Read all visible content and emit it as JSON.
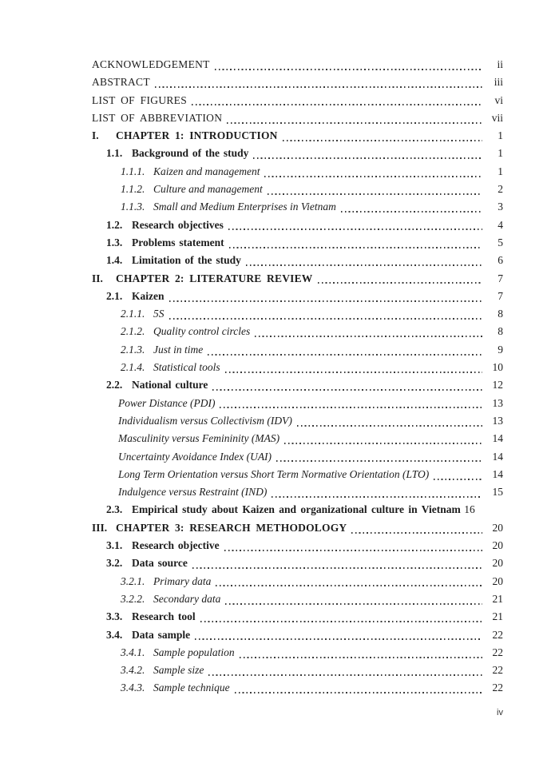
{
  "page": {
    "footer_page_number": "iv",
    "background_color": "#ffffff",
    "text_color": "#1c1c1c",
    "leader_dot_color": "#3b3b3b"
  },
  "toc": {
    "entries": [
      {
        "level": "front",
        "number": "",
        "title": "ACKNOWLEDGEMENT",
        "page": "ii"
      },
      {
        "level": "front",
        "number": "",
        "title": "ABSTRACT",
        "page": "iii"
      },
      {
        "level": "front",
        "number": "",
        "title": "LIST OF FIGURES",
        "page": "vi"
      },
      {
        "level": "front",
        "number": "",
        "title": "LIST OF ABBREVIATION",
        "page": "vii"
      },
      {
        "level": "chapter",
        "number": "I.",
        "title": "CHAPTER 1: INTRODUCTION",
        "page": "1"
      },
      {
        "level": "section",
        "number": "1.1.",
        "title": "Background of the study",
        "page": "1"
      },
      {
        "level": "subsection",
        "number": "1.1.1.",
        "title": "Kaizen and management",
        "page": "1"
      },
      {
        "level": "subsection",
        "number": "1.1.2.",
        "title": "Culture and management",
        "page": "2"
      },
      {
        "level": "subsection",
        "number": "1.1.3.",
        "title": "Small and Medium Enterprises in Vietnam",
        "page": "3"
      },
      {
        "level": "section",
        "number": "1.2.",
        "title": "Research objectives",
        "page": "4"
      },
      {
        "level": "section",
        "number": "1.3.",
        "title": "Problems statement",
        "page": "5"
      },
      {
        "level": "section",
        "number": "1.4.",
        "title": "Limitation of the study",
        "page": "6"
      },
      {
        "level": "chapter",
        "number": "II.",
        "title": "CHAPTER 2: LITERATURE REVIEW",
        "page": "7"
      },
      {
        "level": "section",
        "number": "2.1.",
        "title": "Kaizen",
        "page": "7"
      },
      {
        "level": "subsection",
        "number": "2.1.1.",
        "title": "5S",
        "page": "8"
      },
      {
        "level": "subsection",
        "number": "2.1.2.",
        "title": "Quality control circles",
        "page": "8"
      },
      {
        "level": "subsection",
        "number": "2.1.3.",
        "title": "Just in time",
        "page": "9"
      },
      {
        "level": "subsection",
        "number": "2.1.4.",
        "title": "Statistical tools",
        "page": "10"
      },
      {
        "level": "section",
        "number": "2.2.",
        "title": "National culture",
        "page": "12"
      },
      {
        "level": "plain",
        "number": "",
        "title": "Power Distance (PDI)",
        "page": "13"
      },
      {
        "level": "plain",
        "number": "",
        "title": "Individualism versus Collectivism (IDV)",
        "page": "13"
      },
      {
        "level": "plain",
        "number": "",
        "title": "Masculinity versus Femininity (MAS)",
        "page": "14"
      },
      {
        "level": "plain",
        "number": "",
        "title": "Uncertainty Avoidance Index (UAI)",
        "page": "14"
      },
      {
        "level": "plain",
        "number": "",
        "title": "Long Term Orientation versus Short Term Normative Orientation (LTO)",
        "page": "14"
      },
      {
        "level": "plain",
        "number": "",
        "title": "Indulgence versus Restraint (IND)",
        "page": "15"
      },
      {
        "level": "section",
        "number": "2.3.",
        "title": "Empirical study about Kaizen and organizational culture in Vietnam",
        "page": "16"
      },
      {
        "level": "chapter",
        "number": "III.",
        "title": "CHAPTER 3: RESEARCH METHODOLOGY",
        "page": "20"
      },
      {
        "level": "section",
        "number": "3.1.",
        "title": "Research objective",
        "page": "20"
      },
      {
        "level": "section",
        "number": "3.2.",
        "title": "Data source",
        "page": "20"
      },
      {
        "level": "subsection",
        "number": "3.2.1.",
        "title": "Primary data",
        "page": "20"
      },
      {
        "level": "subsection",
        "number": "3.2.2.",
        "title": "Secondary data",
        "page": "21"
      },
      {
        "level": "section",
        "number": "3.3.",
        "title": "Research tool",
        "page": "21"
      },
      {
        "level": "section",
        "number": "3.4.",
        "title": "Data sample",
        "page": "22"
      },
      {
        "level": "subsection",
        "number": "3.4.1.",
        "title": "Sample population",
        "page": "22"
      },
      {
        "level": "subsection",
        "number": "3.4.2.",
        "title": "Sample size",
        "page": "22"
      },
      {
        "level": "subsection",
        "number": "3.4.3.",
        "title": "Sample technique",
        "page": "22"
      }
    ]
  }
}
